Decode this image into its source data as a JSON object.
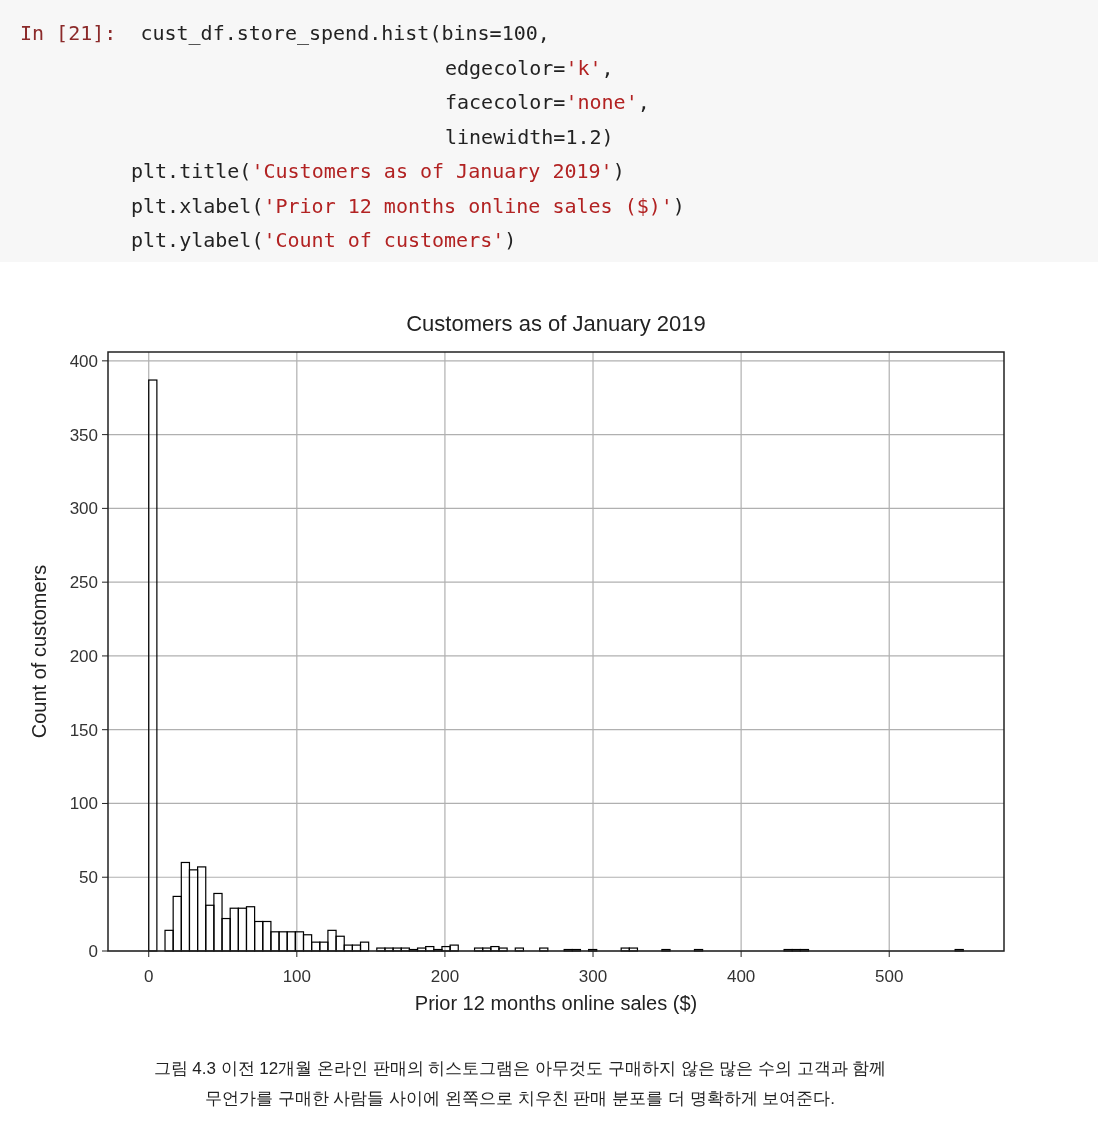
{
  "chart_data": {
    "type": "histogram",
    "title": "Customers as of January 2019",
    "xlabel": "Prior 12 months online sales ($)",
    "ylabel": "Count of customers",
    "bins": [
      0,
      5.5,
      11,
      16.5,
      22,
      27.5,
      33,
      38.5,
      44,
      49.5,
      55,
      60.5,
      66,
      71.5,
      77,
      82.5,
      88,
      93.5,
      99,
      104.5,
      110,
      115.5,
      121,
      126.5,
      132,
      137.5,
      143,
      148.5,
      154,
      159.5,
      165,
      170.5,
      176,
      181.5,
      187,
      192.5,
      198,
      203.5,
      209,
      214.5,
      220,
      225.5,
      231,
      236.5,
      242,
      247.5,
      253,
      258.5,
      264,
      269.5,
      275,
      280.5,
      286,
      291.5,
      297,
      302.5,
      308,
      313.5,
      319,
      324.5,
      330,
      335.5,
      341,
      346.5,
      352,
      357.5,
      363,
      368.5,
      374,
      379.5,
      385,
      390.5,
      396,
      401.5,
      407,
      412.5,
      418,
      423.5,
      429,
      434.5,
      440,
      445.5,
      451,
      456.5,
      462,
      467.5,
      473,
      478.5,
      484,
      489.5,
      495,
      500.5,
      506,
      511.5,
      517,
      522.5,
      528,
      533.5,
      539,
      544.5,
      550
    ],
    "values": [
      387,
      0,
      14,
      37,
      60,
      55,
      57,
      31,
      39,
      22,
      29,
      29,
      30,
      20,
      20,
      13,
      13,
      13,
      13,
      11,
      6,
      6,
      14,
      10,
      4,
      4,
      6,
      0,
      2,
      2,
      2,
      2,
      1,
      2,
      3,
      1,
      3,
      4,
      0,
      0,
      2,
      2,
      3,
      2,
      0,
      2,
      0,
      0,
      2,
      0,
      0,
      1,
      1,
      0,
      1,
      0,
      0,
      0,
      2,
      2,
      0,
      0,
      0,
      1,
      0,
      0,
      0,
      1,
      0,
      0,
      0,
      0,
      0,
      0,
      0,
      0,
      0,
      0,
      1,
      1,
      1,
      0,
      0,
      0,
      0,
      0,
      0,
      0,
      0,
      0,
      0,
      0,
      0,
      0,
      0,
      0,
      0,
      0,
      0,
      1
    ],
    "color": "#000000",
    "xlim": [
      -27.5,
      577.5
    ],
    "ylim": [
      0,
      406
    ],
    "xticks": [
      0,
      100,
      200,
      300,
      400,
      500
    ],
    "yticks": [
      0,
      50,
      100,
      150,
      200,
      250,
      300,
      350,
      400
    ],
    "grid": true,
    "annotations": [
      "In [21]: cust_df.store_spend.hist(bins=100,",
      "edgecolor='k',",
      "facecolor='none',",
      "linewidth=1.2)",
      "plt.title('Customers as of January 2019')",
      "plt.xlabel('Prior 12 months online sales ($)')",
      "plt.ylabel('Count of customers')",
      "그림 4.3 이전 12개월 온라인 판매의 히스토그램은 아무것도 구매하지 않은 많은 수의 고객과 함께",
      "무언가를 구매한 사람들 사이에 왼쪽으로 치우친 판매 분포를 더 명확하게 보여준다."
    ]
  }
}
